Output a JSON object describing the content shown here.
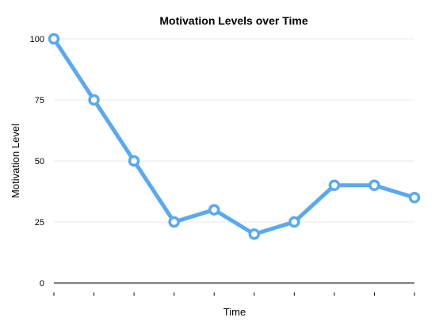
{
  "chart_data": {
    "type": "line",
    "title": "Motivation Levels over Time",
    "xlabel": "Time",
    "ylabel": "Motivation Level",
    "x": [
      "",
      "",
      "",
      "",
      "",
      "",
      "",
      "",
      "",
      ""
    ],
    "series": [
      {
        "values": [
          100,
          75,
          50,
          25,
          30,
          20,
          25,
          40,
          40,
          35
        ]
      }
    ],
    "yticks": [
      "0",
      "25",
      "50",
      "75",
      "100"
    ],
    "ylim": [
      0,
      100
    ],
    "grid": true,
    "legend": "none",
    "colors": {
      "line": "#5aa9f0",
      "grid": "#e9e9e9",
      "axis": "#000000",
      "marker_fill": "#ffffff"
    }
  }
}
